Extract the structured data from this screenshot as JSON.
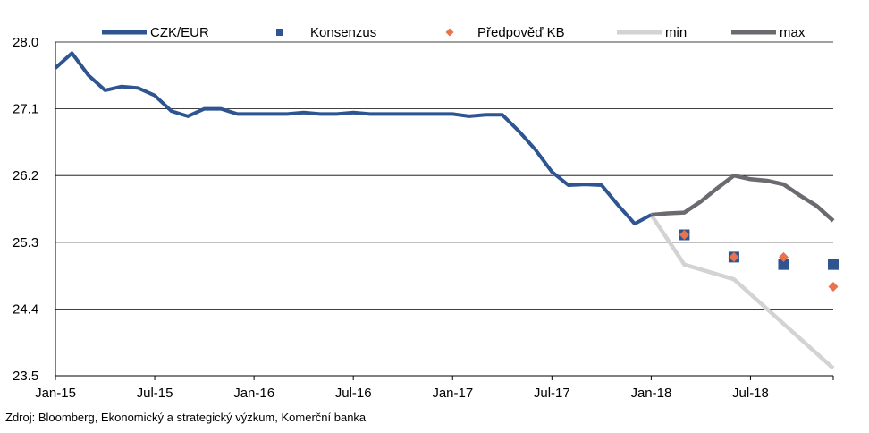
{
  "source_note": "Zdroj: Bloomberg, Ekonomický a strategický výzkum, Komerční banka",
  "chart_data": {
    "type": "line",
    "title": "",
    "xlabel": "",
    "ylabel": "",
    "ylim": [
      23.5,
      28.0
    ],
    "y_ticks": [
      23.5,
      24.4,
      25.3,
      26.2,
      27.1,
      28.0
    ],
    "y_tick_labels": [
      "23.5",
      "24.4",
      "25.3",
      "26.2",
      "27.1",
      "28.0"
    ],
    "x_ticks": [
      "2015-01",
      "2015-07",
      "2016-01",
      "2016-07",
      "2017-01",
      "2017-07",
      "2018-01",
      "2018-07"
    ],
    "x_tick_labels": [
      "Jan-15",
      "Jul-15",
      "Jan-16",
      "Jul-16",
      "Jan-17",
      "Jul-17",
      "Jan-18",
      "Jul-18"
    ],
    "x_range": [
      "2015-01",
      "2018-12"
    ],
    "grid": "horizontal",
    "legend_position": "top",
    "legend": [
      {
        "label": "CZK/EUR",
        "marker": "line",
        "color": "#2e5591"
      },
      {
        "label": "Konsenzus",
        "marker": "square",
        "color": "#2e5591"
      },
      {
        "label": "Předpověď KB",
        "marker": "diamond",
        "color": "#e8734f"
      },
      {
        "label": "min",
        "marker": "line",
        "color": "#d3d3d3"
      },
      {
        "label": "max",
        "marker": "line",
        "color": "#6b6a70"
      }
    ],
    "series": [
      {
        "name": "CZK/EUR",
        "style": "line",
        "color": "#2e5591",
        "points": [
          [
            "2015-01",
            27.65
          ],
          [
            "2015-02",
            27.85
          ],
          [
            "2015-03",
            27.55
          ],
          [
            "2015-04",
            27.35
          ],
          [
            "2015-05",
            27.4
          ],
          [
            "2015-06",
            27.38
          ],
          [
            "2015-07",
            27.28
          ],
          [
            "2015-08",
            27.07
          ],
          [
            "2015-09",
            27.0
          ],
          [
            "2015-10",
            27.1
          ],
          [
            "2015-11",
            27.1
          ],
          [
            "2015-12",
            27.03
          ],
          [
            "2016-01",
            27.03
          ],
          [
            "2016-02",
            27.03
          ],
          [
            "2016-03",
            27.03
          ],
          [
            "2016-04",
            27.05
          ],
          [
            "2016-05",
            27.03
          ],
          [
            "2016-06",
            27.03
          ],
          [
            "2016-07",
            27.05
          ],
          [
            "2016-08",
            27.03
          ],
          [
            "2016-09",
            27.03
          ],
          [
            "2016-10",
            27.03
          ],
          [
            "2016-11",
            27.03
          ],
          [
            "2016-12",
            27.03
          ],
          [
            "2017-01",
            27.03
          ],
          [
            "2017-02",
            27.0
          ],
          [
            "2017-03",
            27.02
          ],
          [
            "2017-04",
            27.02
          ],
          [
            "2017-05",
            26.8
          ],
          [
            "2017-06",
            26.55
          ],
          [
            "2017-07",
            26.25
          ],
          [
            "2017-08",
            26.07
          ],
          [
            "2017-09",
            26.08
          ],
          [
            "2017-10",
            26.07
          ],
          [
            "2017-11",
            25.8
          ],
          [
            "2017-12",
            25.55
          ],
          [
            "2018-01",
            25.67
          ]
        ]
      },
      {
        "name": "Konsenzus",
        "style": "square",
        "color": "#2e5591",
        "points": [
          [
            "2018-03",
            25.4
          ],
          [
            "2018-06",
            25.1
          ],
          [
            "2018-09",
            25.0
          ],
          [
            "2018-12",
            25.0
          ]
        ]
      },
      {
        "name": "Předpověď KB",
        "style": "diamond",
        "color": "#e8734f",
        "points": [
          [
            "2018-03",
            25.4
          ],
          [
            "2018-06",
            25.1
          ],
          [
            "2018-09",
            25.1
          ],
          [
            "2018-12",
            24.7
          ]
        ]
      },
      {
        "name": "min",
        "style": "line",
        "color": "#d3d3d3",
        "points": [
          [
            "2018-01",
            25.67
          ],
          [
            "2018-03",
            25.0
          ],
          [
            "2018-06",
            24.8
          ],
          [
            "2018-09",
            24.2
          ],
          [
            "2018-12",
            23.6
          ]
        ]
      },
      {
        "name": "max",
        "style": "line",
        "color": "#6b6a70",
        "points": [
          [
            "2018-01",
            25.67
          ],
          [
            "2018-02",
            25.69
          ],
          [
            "2018-03",
            25.7
          ],
          [
            "2018-04",
            25.85
          ],
          [
            "2018-05",
            26.03
          ],
          [
            "2018-06",
            26.2
          ],
          [
            "2018-07",
            26.15
          ],
          [
            "2018-08",
            26.13
          ],
          [
            "2018-09",
            26.08
          ],
          [
            "2018-10",
            25.93
          ],
          [
            "2018-11",
            25.79
          ],
          [
            "2018-12",
            25.59
          ]
        ]
      }
    ]
  }
}
